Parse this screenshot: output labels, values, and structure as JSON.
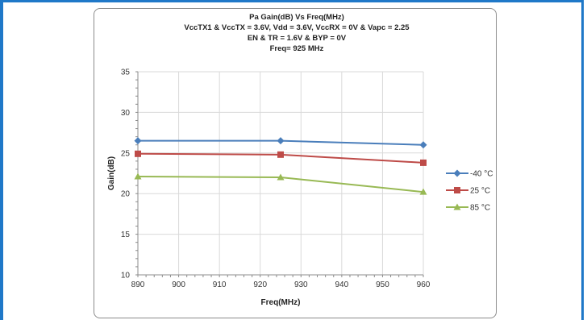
{
  "chart_data": {
    "type": "line",
    "title_lines": [
      "Pa Gain(dB) Vs Freq(MHz)",
      "VccTX1 & VccTX = 3.6V, Vdd = 3.6V, VccRX  = 0V & Vapc = 2.25",
      "EN & TR = 1.6V & BYP = 0V",
      "Freq= 925 MHz"
    ],
    "xlabel": "Freq(MHz)",
    "ylabel": "Gain(dB)",
    "xlim": [
      890,
      960
    ],
    "ylim": [
      10,
      35
    ],
    "x_ticks": [
      890,
      900,
      910,
      920,
      930,
      940,
      950,
      960
    ],
    "y_ticks": [
      10,
      15,
      20,
      25,
      30,
      35
    ],
    "grid": true,
    "legend_position": "right",
    "x": [
      890,
      925,
      960
    ],
    "series": [
      {
        "name": "-40 °C",
        "values": [
          26.5,
          26.5,
          26.0
        ],
        "color": "#4a7ebb",
        "marker": "diamond"
      },
      {
        "name": "25 °C",
        "values": [
          24.9,
          24.8,
          23.8
        ],
        "color": "#be4b48",
        "marker": "square"
      },
      {
        "name": "85 °C",
        "values": [
          22.1,
          22.0,
          20.2
        ],
        "color": "#98b954",
        "marker": "triangle"
      }
    ]
  }
}
